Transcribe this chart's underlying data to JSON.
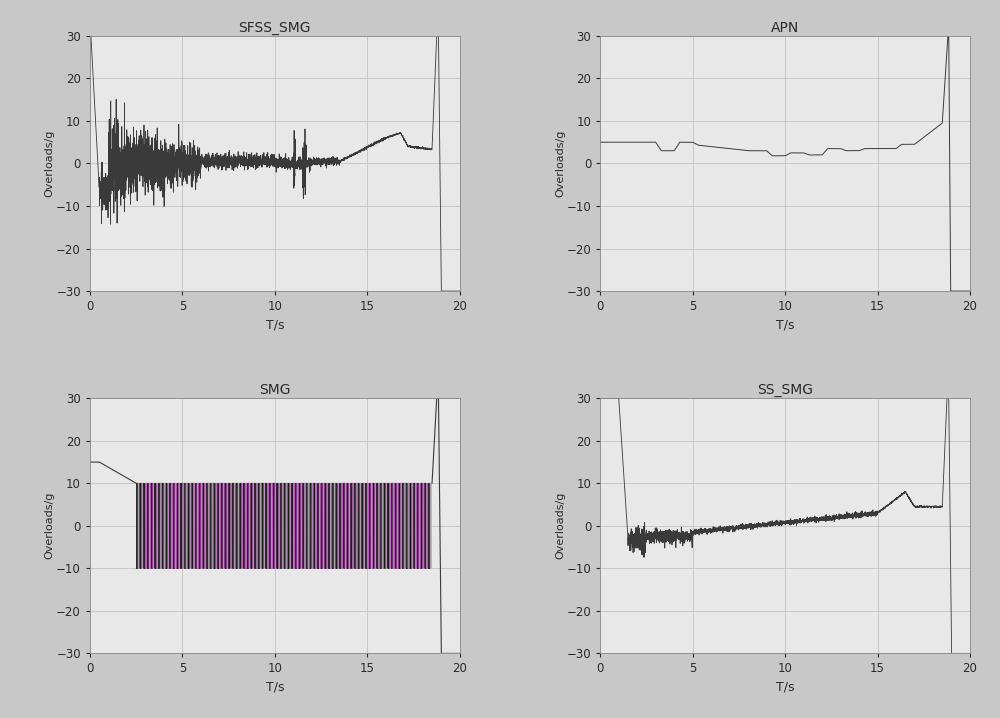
{
  "titles": [
    "SFSS_SMG",
    "APN",
    "SMG",
    "SS_SMG"
  ],
  "xlabel": "T/s",
  "ylabel": "Overloads/g",
  "xlim": [
    0,
    20
  ],
  "ylim": [
    -30,
    30
  ],
  "xticks": [
    0,
    5,
    10,
    15,
    20
  ],
  "yticks": [
    -30,
    -20,
    -10,
    0,
    10,
    20,
    30
  ],
  "line_color": "#3a3a3a",
  "bg_color": "#e8e8e8",
  "grid_color": "#c8c8c8",
  "fig_bg": "#c8c8c8"
}
